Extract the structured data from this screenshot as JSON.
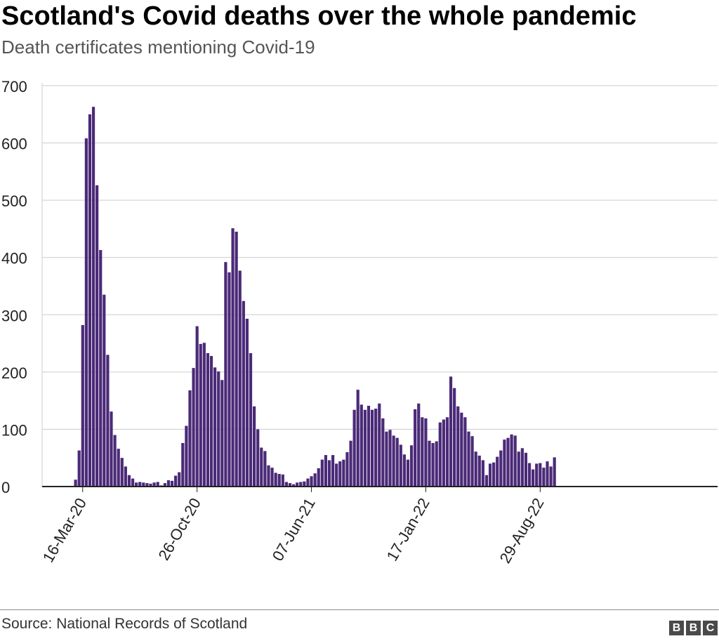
{
  "chart_data": {
    "type": "bar",
    "title": "Scotland's Covid deaths over the whole pandemic",
    "subtitle": "Death certificates mentioning Covid-19",
    "source": "Source: National Records of Scotland",
    "ylim": [
      0,
      700
    ],
    "yticks": [
      0,
      100,
      200,
      300,
      400,
      500,
      600,
      700
    ],
    "x_tick_labels": [
      "16-Mar-20",
      "26-Oct-20",
      "07-Jun-21",
      "17-Jan-22",
      "29-Aug-22"
    ],
    "x_tick_indices": [
      2,
      34,
      66,
      98,
      130
    ],
    "grid": true,
    "bar_color": "#4b2a78",
    "start_week": "02-Mar-20",
    "interval": "weekly",
    "values": [
      12,
      63,
      282,
      608,
      650,
      663,
      526,
      413,
      335,
      230,
      131,
      90,
      66,
      50,
      35,
      20,
      14,
      7,
      8,
      7,
      6,
      5,
      7,
      8,
      2,
      6,
      11,
      10,
      19,
      25,
      76,
      106,
      168,
      207,
      280,
      249,
      251,
      233,
      228,
      208,
      201,
      186,
      392,
      374,
      451,
      445,
      377,
      324,
      293,
      233,
      140,
      100,
      68,
      62,
      37,
      33,
      24,
      22,
      21,
      8,
      6,
      4,
      7,
      8,
      9,
      14,
      18,
      23,
      32,
      47,
      55,
      46,
      55,
      40,
      44,
      47,
      60,
      80,
      134,
      169,
      143,
      134,
      141,
      134,
      136,
      145,
      119,
      96,
      99,
      89,
      85,
      73,
      56,
      47,
      72,
      135,
      145,
      121,
      119,
      80,
      76,
      79,
      112,
      117,
      121,
      192,
      172,
      140,
      129,
      121,
      96,
      88,
      61,
      54,
      46,
      20,
      40,
      42,
      52,
      63,
      82,
      85,
      91,
      89,
      61,
      67,
      59,
      41,
      30,
      40,
      41,
      33,
      44,
      35,
      51
    ]
  },
  "branding": {
    "logo_letters": [
      "B",
      "B",
      "C"
    ]
  }
}
